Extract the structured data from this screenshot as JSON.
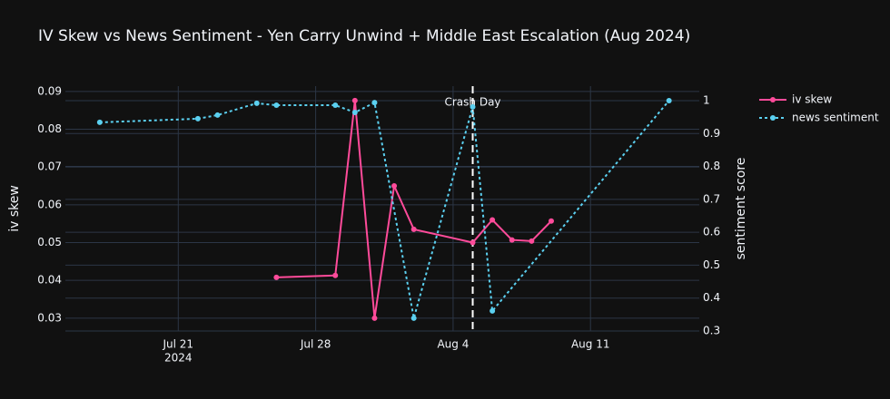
{
  "chart_data": {
    "type": "line",
    "title": "IV Skew vs News Sentiment - Yen Carry Unwind + Middle East Escalation (Aug 2024)",
    "y_label": "iv skew",
    "y2_label": "sentiment score",
    "xlim": [
      "2024-07-15T06:00:00Z",
      "2024-08-16T13:00:00Z"
    ],
    "xticks": [
      {
        "value": "2024-07-21",
        "label": "Jul 21",
        "year": "2024"
      },
      {
        "value": "2024-07-28",
        "label": "Jul 28"
      },
      {
        "value": "2024-08-04",
        "label": "Aug 4"
      },
      {
        "value": "2024-08-11",
        "label": "Aug 11"
      }
    ],
    "ylim": [
      0.0266,
      0.0914
    ],
    "yticks": [
      0.03,
      0.04,
      0.05,
      0.06,
      0.07,
      0.08,
      0.09
    ],
    "y2lim": [
      0.3,
      1.044
    ],
    "y2ticks": [
      0.3,
      0.4,
      0.5,
      0.6,
      0.7,
      0.8,
      0.9,
      1
    ],
    "grid": true,
    "legend": "top-right",
    "annotations": [
      {
        "x": "2024-08-05",
        "text": "Crash Day"
      }
    ],
    "series": [
      {
        "name": "iv skew",
        "color": "#ff4b9a",
        "dash": "solid",
        "x": [
          "2024-07-26",
          "2024-07-29",
          "2024-07-30",
          "2024-07-31",
          "2024-08-01",
          "2024-08-02",
          "2024-08-05",
          "2024-08-06",
          "2024-08-07",
          "2024-08-08",
          "2024-08-09"
        ],
        "values": [
          0.0408,
          0.0413,
          0.0876,
          0.03,
          0.065,
          0.0535,
          0.05,
          0.056,
          0.0507,
          0.0504,
          0.0557
        ]
      },
      {
        "name": "news sentiment",
        "color": "#5bd0f0",
        "dash": "dot",
        "axis": "y2",
        "x": [
          "2024-07-17",
          "2024-07-22",
          "2024-07-23",
          "2024-07-25",
          "2024-07-26",
          "2024-07-29",
          "2024-07-30",
          "2024-07-31",
          "2024-08-02",
          "2024-08-05",
          "2024-08-06",
          "2024-08-15"
        ],
        "values": [
          0.934,
          0.945,
          0.956,
          0.992,
          0.986,
          0.986,
          0.964,
          0.994,
          0.339,
          0.981,
          0.361,
          1.0
        ]
      }
    ]
  }
}
